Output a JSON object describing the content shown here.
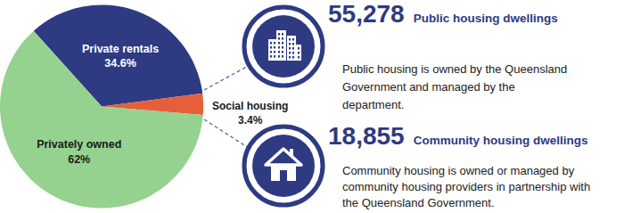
{
  "chart_data": {
    "type": "pie",
    "categories": [
      "Private rentals",
      "Social housing",
      "Privately owned"
    ],
    "values": [
      34.6,
      3.4,
      62
    ],
    "value_labels": [
      "34.6%",
      "3.4%",
      "62%"
    ],
    "colors": [
      "#2e3a82",
      "#e5603a",
      "#95d28f"
    ],
    "data_labels": true
  },
  "callouts": [
    {
      "count": "55,278",
      "title": "Public housing dwellings",
      "description": [
        "Public housing is owned by the Queensland",
        "Government and managed by the",
        "department."
      ]
    },
    {
      "count": "18,855",
      "title": "Community housing dwellings",
      "description": [
        "Community housing is owned or managed by",
        "community housing providers in partnership with",
        "the Queensland Government."
      ]
    }
  ]
}
